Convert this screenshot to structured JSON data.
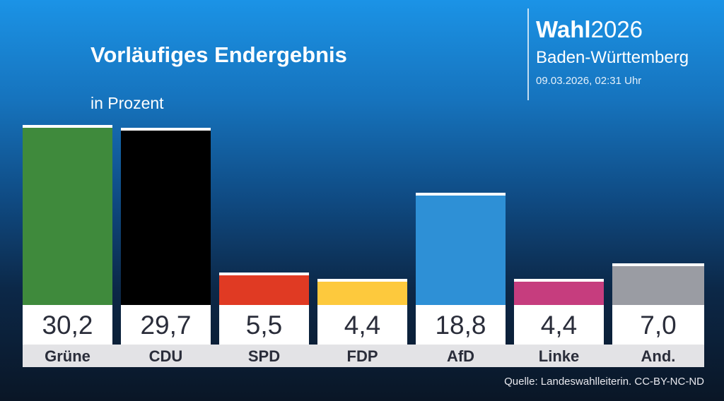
{
  "header": {
    "brand_bold": "Wahl",
    "brand_year": "2026",
    "region": "Baden-Württemberg",
    "timestamp": "09.03.2026, 02:31 Uhr"
  },
  "chart_data": {
    "type": "bar",
    "title": "Vorläufiges Endergebnis",
    "subtitle": "in Prozent",
    "categories": [
      "Grüne",
      "CDU",
      "SPD",
      "FDP",
      "AfD",
      "Linke",
      "And."
    ],
    "values": [
      30.2,
      29.7,
      5.5,
      4.4,
      18.8,
      4.4,
      7.0
    ],
    "value_labels": [
      "30,2",
      "29,7",
      "5,5",
      "4,4",
      "18,8",
      "4,4",
      "7,0"
    ],
    "colors": [
      "#3f8a3c",
      "#000000",
      "#e03a23",
      "#fdc93d",
      "#2e90d6",
      "#c63d7e",
      "#9a9ca3"
    ],
    "ylabel": "Prozent",
    "ylim": [
      0,
      30.2
    ]
  },
  "footer": {
    "source": "Quelle: Landeswahlleiterin. CC-BY-NC-ND"
  }
}
